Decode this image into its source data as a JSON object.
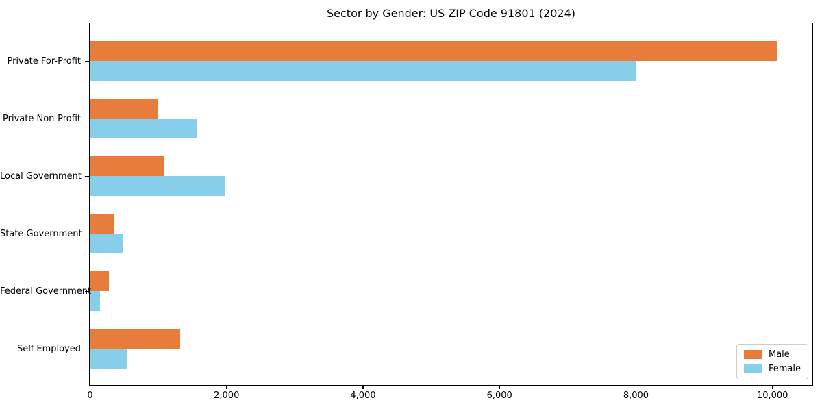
{
  "title": "Sector by Gender: US ZIP Code 91801 (2024)",
  "colors": {
    "male": "#E87D3B",
    "female": "#87CEEB",
    "spine": "#000000",
    "legend_border": "#cccccc",
    "background": "#ffffff",
    "text": "#000000"
  },
  "legend": {
    "position": "lower right",
    "items": [
      {
        "label": "Male",
        "color": "#E87D3B"
      },
      {
        "label": "Female",
        "color": "#87CEEB"
      }
    ]
  },
  "chart_data": {
    "type": "bar",
    "orientation": "horizontal",
    "title": "Sector by Gender: US ZIP Code 91801 (2024)",
    "categories": [
      "Private For-Profit",
      "Private Non-Profit",
      "Local Government",
      "State Government",
      "Federal Government",
      "Self-Employed"
    ],
    "series": [
      {
        "name": "Male",
        "color": "#E87D3B",
        "values": [
          10060,
          1005,
          1095,
          360,
          280,
          1320
        ]
      },
      {
        "name": "Female",
        "color": "#87CEEB",
        "values": [
          8005,
          1575,
          1980,
          490,
          155,
          540
        ]
      }
    ],
    "x_ticks": [
      0,
      2000,
      4000,
      6000,
      8000,
      10000
    ],
    "x_tick_labels": [
      "0",
      "2,000",
      "4,000",
      "6,000",
      "8,000",
      "10,000"
    ],
    "xlabel": "",
    "ylabel": "",
    "xlim": [
      0,
      10580
    ],
    "grid": false,
    "legend_position": "lower right"
  }
}
